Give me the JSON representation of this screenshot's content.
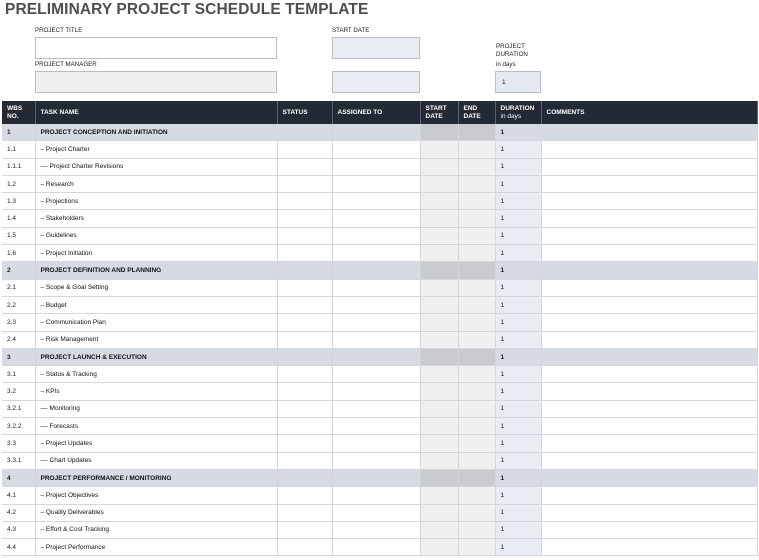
{
  "title": "PRELIMINARY PROJECT SCHEDULE TEMPLATE",
  "form": {
    "project_title_label": "PROJECT TITLE",
    "project_title_value": "",
    "project_manager_label": "PROJECT MANAGER",
    "project_manager_value": "",
    "start_date_label": "START DATE",
    "start_date_value": "",
    "extra_value": "",
    "duration_label": "PROJECT DURATION",
    "duration_sub": "in days",
    "duration_value": "1"
  },
  "table": {
    "headers": {
      "wbs": "WBS NO.",
      "task": "TASK NAME",
      "status": "STATUS",
      "assigned": "ASSIGNED TO",
      "start": "START DATE",
      "end": "END DATE",
      "duration": "DURATION",
      "duration_unit": "in days",
      "comments": "COMMENTS"
    },
    "rows": [
      {
        "wbs": "1",
        "task": "PROJECT CONCEPTION AND INITIATION",
        "duration": "1",
        "section": true
      },
      {
        "wbs": "1.1",
        "task": "– Project Charter",
        "duration": "1"
      },
      {
        "wbs": "1.1.1",
        "task": "–– Project Charter Revisions",
        "duration": "1"
      },
      {
        "wbs": "1.2",
        "task": "– Research",
        "duration": "1"
      },
      {
        "wbs": "1.3",
        "task": "– Projections",
        "duration": "1"
      },
      {
        "wbs": "1.4",
        "task": "– Stakeholders",
        "duration": "1"
      },
      {
        "wbs": "1.5",
        "task": "– Guidelines",
        "duration": "1"
      },
      {
        "wbs": "1.6",
        "task": "– Project Initiation",
        "duration": "1"
      },
      {
        "wbs": "2",
        "task": "PROJECT DEFINITION AND PLANNING",
        "duration": "1",
        "section": true
      },
      {
        "wbs": "2.1",
        "task": "– Scope & Goal Setting",
        "duration": "1"
      },
      {
        "wbs": "2.2",
        "task": "– Budget",
        "duration": "1"
      },
      {
        "wbs": "2.3",
        "task": "– Communication Plan",
        "duration": "1"
      },
      {
        "wbs": "2.4",
        "task": "– Risk Management",
        "duration": "1"
      },
      {
        "wbs": "3",
        "task": "PROJECT LAUNCH & EXECUTION",
        "duration": "1",
        "section": true
      },
      {
        "wbs": "3.1",
        "task": "– Status & Tracking",
        "duration": "1"
      },
      {
        "wbs": "3.2",
        "task": "– KPIs",
        "duration": "1"
      },
      {
        "wbs": "3.2.1",
        "task": "–– Monitoring",
        "duration": "1"
      },
      {
        "wbs": "3.2.2",
        "task": "–– Forecasts",
        "duration": "1"
      },
      {
        "wbs": "3.3",
        "task": "– Project Updates",
        "duration": "1"
      },
      {
        "wbs": "3.3.1",
        "task": "–– Chart Updates",
        "duration": "1"
      },
      {
        "wbs": "4",
        "task": "PROJECT PERFORMANCE / MONITORING",
        "duration": "1",
        "section": true
      },
      {
        "wbs": "4.1",
        "task": "– Project Objectives",
        "duration": "1"
      },
      {
        "wbs": "4.2",
        "task": "– Quality Deliverables",
        "duration": "1"
      },
      {
        "wbs": "4.3",
        "task": "– Effort & Cost Tracking",
        "duration": "1"
      },
      {
        "wbs": "4.4",
        "task": "– Project Performance",
        "duration": "1"
      }
    ]
  }
}
